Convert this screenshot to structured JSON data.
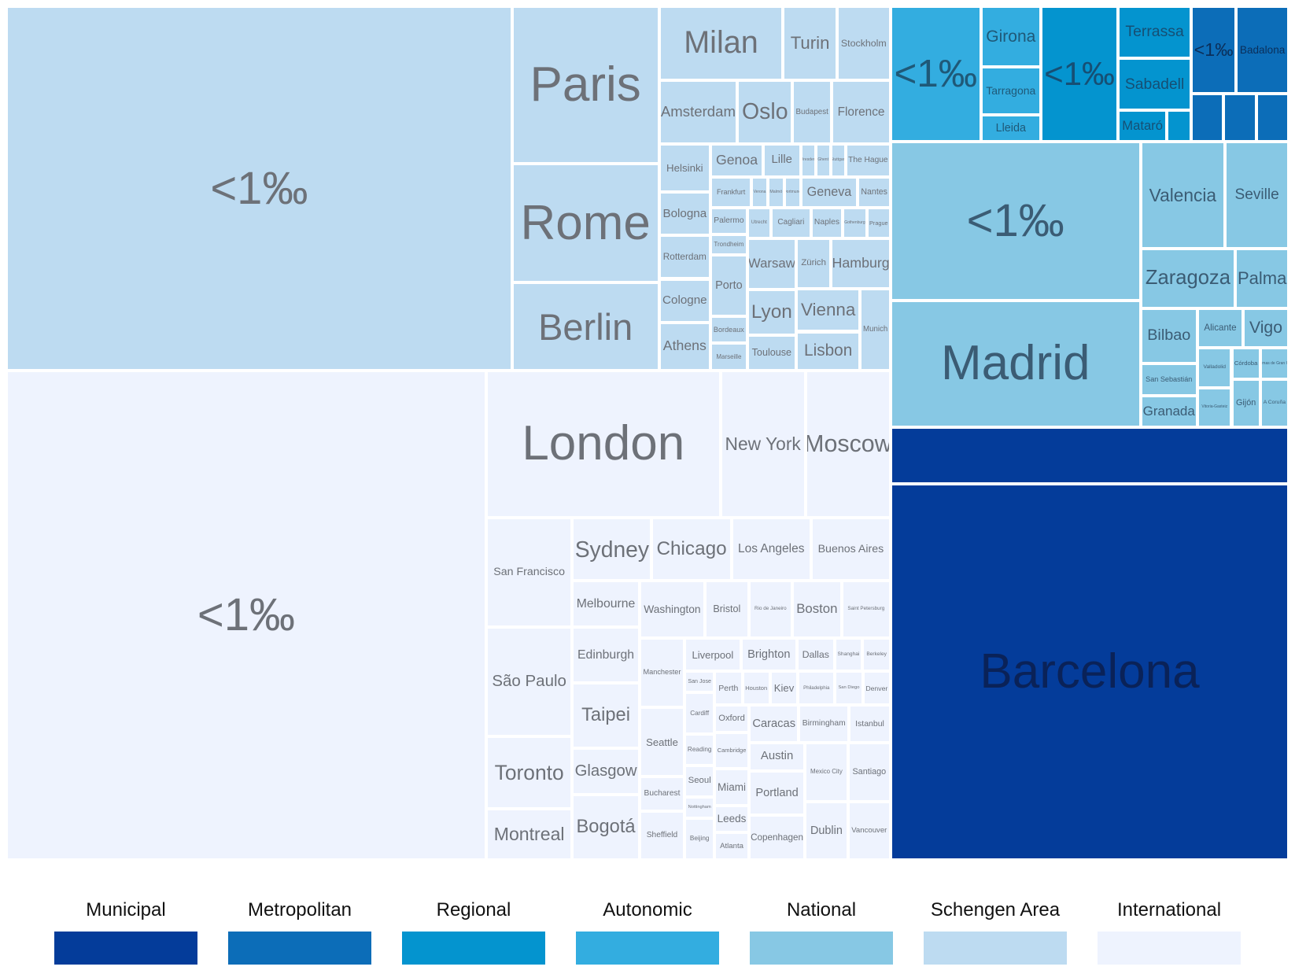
{
  "chart_data": {
    "type": "treemap",
    "title": "",
    "groups": [
      {
        "name": "Schengen Area",
        "color": "#bddbf1",
        "text_color": "#6d7178",
        "items": [
          {
            "label": "<1‰",
            "size": 74.0,
            "role": "other"
          },
          {
            "label": "Paris",
            "size": 9.3
          },
          {
            "label": "Rome",
            "size": 7.0
          },
          {
            "label": "Berlin",
            "size": 5.2
          },
          {
            "label": "Milan",
            "size": 3.7
          },
          {
            "label": "Turin",
            "size": 1.6
          },
          {
            "label": "Stockholm",
            "size": 1.6
          },
          {
            "label": "Amsterdam",
            "size": 2.0
          },
          {
            "label": "Oslo",
            "size": 1.4
          },
          {
            "label": "Budapest",
            "size": 1.0
          },
          {
            "label": "Florence",
            "size": 1.5
          },
          {
            "label": "Helsinki",
            "size": 1.0
          },
          {
            "label": "Bologna",
            "size": 0.9
          },
          {
            "label": "Rotterdam",
            "size": 0.9
          },
          {
            "label": "Cologne",
            "size": 0.9
          },
          {
            "label": "Athens",
            "size": 1.0
          },
          {
            "label": "Genoa",
            "size": 0.7
          },
          {
            "label": "Lille",
            "size": 0.5
          },
          {
            "label": "Dresden",
            "size": 0.2
          },
          {
            "label": "Ghent",
            "size": 0.2
          },
          {
            "label": "Stuttgart",
            "size": 0.2
          },
          {
            "label": "The Hague",
            "size": 0.6
          },
          {
            "label": "Frankfurt",
            "size": 0.5
          },
          {
            "label": "Verona",
            "size": 0.2
          },
          {
            "label": "Malmö",
            "size": 0.2
          },
          {
            "label": "Dortmund",
            "size": 0.2
          },
          {
            "label": "Geneva",
            "size": 0.7
          },
          {
            "label": "Nantes",
            "size": 0.4
          },
          {
            "label": "Palermo",
            "size": 0.4
          },
          {
            "label": "Trondheim",
            "size": 0.3
          },
          {
            "label": "Porto",
            "size": 0.9
          },
          {
            "label": "Bordeaux",
            "size": 0.4
          },
          {
            "label": "Marseille",
            "size": 0.4
          },
          {
            "label": "Utrecht",
            "size": 0.3
          },
          {
            "label": "Cagliari",
            "size": 0.5
          },
          {
            "label": "Naples",
            "size": 0.4
          },
          {
            "label": "Gothenburg",
            "size": 0.3
          },
          {
            "label": "Prague",
            "size": 0.3
          },
          {
            "label": "Warsaw",
            "size": 1.0
          },
          {
            "label": "Lyon",
            "size": 0.9
          },
          {
            "label": "Toulouse",
            "size": 0.7
          },
          {
            "label": "Zürich",
            "size": 0.7
          },
          {
            "label": "Hamburg",
            "size": 1.2
          },
          {
            "label": "Vienna",
            "size": 1.1
          },
          {
            "label": "Lisbon",
            "size": 1.0
          },
          {
            "label": "Munich",
            "size": 1.0
          }
        ]
      },
      {
        "name": "International",
        "color": "#eef3fe",
        "text_color": "#6d7178",
        "items": [
          {
            "label": "<1‰",
            "size": 75.0,
            "role": "other"
          },
          {
            "label": "London",
            "size": 11.0
          },
          {
            "label": "New York",
            "size": 4.0
          },
          {
            "label": "Moscow",
            "size": 4.0
          },
          {
            "label": "San Francisco",
            "size": 3.0
          },
          {
            "label": "São Paulo",
            "size": 3.0
          },
          {
            "label": "Toronto",
            "size": 2.0
          },
          {
            "label": "Montreal",
            "size": 1.4
          },
          {
            "label": "Sydney",
            "size": 1.6
          },
          {
            "label": "Chicago",
            "size": 1.6
          },
          {
            "label": "Los Angeles",
            "size": 1.6
          },
          {
            "label": "Buenos Aires",
            "size": 1.6
          },
          {
            "label": "Melbourne",
            "size": 1.0
          },
          {
            "label": "Edinburgh",
            "size": 1.2
          },
          {
            "label": "Taipei",
            "size": 1.4
          },
          {
            "label": "Glasgow",
            "size": 1.0
          },
          {
            "label": "Bogotá",
            "size": 1.4
          },
          {
            "label": "Washington",
            "size": 1.2
          },
          {
            "label": "Bristol",
            "size": 0.8
          },
          {
            "label": "Rio de Janeiro",
            "size": 0.8
          },
          {
            "label": "Boston",
            "size": 0.9
          },
          {
            "label": "Saint Petersburg",
            "size": 0.9
          },
          {
            "label": "Manchester",
            "size": 1.0
          },
          {
            "label": "Seattle",
            "size": 1.0
          },
          {
            "label": "Bucharest",
            "size": 0.5
          },
          {
            "label": "Sheffield",
            "size": 0.7
          },
          {
            "label": "Liverpool",
            "size": 0.6
          },
          {
            "label": "Brighton",
            "size": 0.6
          },
          {
            "label": "Dallas",
            "size": 0.4
          },
          {
            "label": "Shanghai",
            "size": 0.3
          },
          {
            "label": "Berkeley",
            "size": 0.3
          },
          {
            "label": "San Jose",
            "size": 0.2
          },
          {
            "label": "Cardiff",
            "size": 0.4
          },
          {
            "label": "Reading",
            "size": 0.3
          },
          {
            "label": "Seoul",
            "size": 0.3
          },
          {
            "label": "Nottingham",
            "size": 0.2
          },
          {
            "label": "Beijing",
            "size": 0.4
          },
          {
            "label": "Perth",
            "size": 0.3
          },
          {
            "label": "Houston",
            "size": 0.3
          },
          {
            "label": "Kiev",
            "size": 0.3
          },
          {
            "label": "Philadelphia",
            "size": 0.4
          },
          {
            "label": "San Diego",
            "size": 0.3
          },
          {
            "label": "Denver",
            "size": 0.3
          },
          {
            "label": "Oxford",
            "size": 0.3
          },
          {
            "label": "Cambridge",
            "size": 0.4
          },
          {
            "label": "Miami",
            "size": 0.4
          },
          {
            "label": "Leeds",
            "size": 0.3
          },
          {
            "label": "Atlanta",
            "size": 0.3
          },
          {
            "label": "Caracas",
            "size": 0.6
          },
          {
            "label": "Birmingham",
            "size": 0.6
          },
          {
            "label": "Istanbul",
            "size": 0.5
          },
          {
            "label": "Austin",
            "size": 0.5
          },
          {
            "label": "Portland",
            "size": 0.8
          },
          {
            "label": "Copenhagen",
            "size": 0.8
          },
          {
            "label": "Mexico City",
            "size": 0.8
          },
          {
            "label": "Santiago",
            "size": 0.8
          },
          {
            "label": "Dublin",
            "size": 0.8
          },
          {
            "label": "Vancouver",
            "size": 0.8
          }
        ]
      },
      {
        "name": "Autonomic",
        "color": "#33ade0",
        "text_color": "#1f5978",
        "items": [
          {
            "label": "<1‰",
            "size": 60.0,
            "role": "other"
          },
          {
            "label": "Girona",
            "size": 18.0
          },
          {
            "label": "Tarragona",
            "size": 14.0
          },
          {
            "label": "Lleida",
            "size": 8.0
          }
        ]
      },
      {
        "name": "Regional",
        "color": "#0494cf",
        "text_color": "#164f74",
        "items": [
          {
            "label": "<1‰",
            "size": 55.0,
            "role": "other"
          },
          {
            "label": "Terrassa",
            "size": 20.0
          },
          {
            "label": "Sabadell",
            "size": 20.0
          },
          {
            "label": "Mataró",
            "size": 8.0
          },
          {
            "label": "",
            "size": 4.0
          }
        ]
      },
      {
        "name": "Metropolitan",
        "color": "#0c6db8",
        "text_color": "#0b2f5a",
        "items": [
          {
            "label": "<1‰",
            "size": 30.0,
            "role": "other"
          },
          {
            "label": "Badalona",
            "size": 35.0
          },
          {
            "label": "",
            "size": 12.0
          },
          {
            "label": "",
            "size": 12.0
          },
          {
            "label": "",
            "size": 12.0
          }
        ]
      },
      {
        "name": "National",
        "color": "#87c8e4",
        "text_color": "#3b5c74",
        "items": [
          {
            "label": "<1‰",
            "size": 35.0,
            "role": "other"
          },
          {
            "label": "Madrid",
            "size": 28.0
          },
          {
            "label": "Valencia",
            "size": 8.0
          },
          {
            "label": "Seville",
            "size": 6.0
          },
          {
            "label": "Zaragoza",
            "size": 5.0
          },
          {
            "label": "Palma",
            "size": 2.8
          },
          {
            "label": "Bilbao",
            "size": 2.8
          },
          {
            "label": "San Sebastián",
            "size": 1.6
          },
          {
            "label": "Granada",
            "size": 1.6
          },
          {
            "label": "Alicante",
            "size": 1.6
          },
          {
            "label": "Vigo",
            "size": 1.6
          },
          {
            "label": "Valladolid",
            "size": 1.2
          },
          {
            "label": "Vitoria-Gasteiz",
            "size": 1.2
          },
          {
            "label": "Córdoba",
            "size": 0.8
          },
          {
            "label": "Las Palmas de Gran Canaria",
            "size": 0.8
          },
          {
            "label": "Gijón",
            "size": 1.2
          },
          {
            "label": "A Coruña",
            "size": 1.2
          }
        ]
      },
      {
        "name": "Municipal",
        "color": "#043c9a",
        "text_color": "#0a2258",
        "items": [
          {
            "label": "",
            "size": 13.0
          },
          {
            "label": "Barcelona",
            "size": 87.0
          }
        ]
      }
    ],
    "legend": {
      "position": "bottom",
      "entries": [
        {
          "label": "Municipal",
          "color": "#043c9a"
        },
        {
          "label": "Metropolitan",
          "color": "#0c6db8"
        },
        {
          "label": "Regional",
          "color": "#0494cf"
        },
        {
          "label": "Autonomic",
          "color": "#33ade0"
        },
        {
          "label": "National",
          "color": "#87c8e4"
        },
        {
          "label": "Schengen Area",
          "color": "#bddbf1"
        },
        {
          "label": "International",
          "color": "#eef3fe"
        }
      ]
    }
  }
}
